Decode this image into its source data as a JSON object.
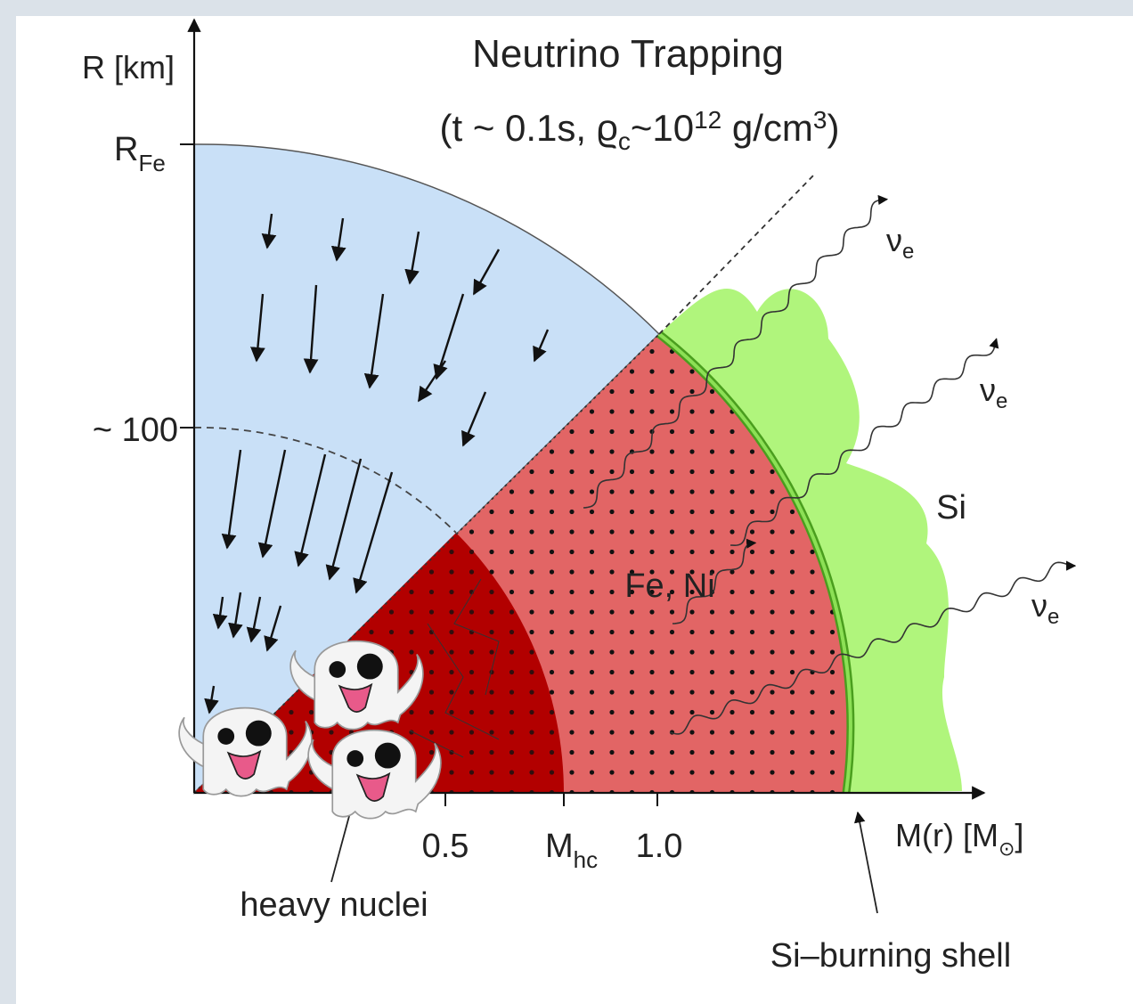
{
  "title": "Neutrino Trapping",
  "subtitle": [
    "(t ~ 0.1s, ϱ",
    "c",
    "~10",
    "12",
    " g/cm",
    "3",
    ")"
  ],
  "y_axis": {
    "label": "R [km]",
    "ticks": [
      {
        "main": "R",
        "sub": "Fe"
      },
      {
        "main": "~ 100"
      }
    ]
  },
  "x_axis": {
    "label": {
      "main": "M(r) [M",
      "sub": "⊙",
      "end": "]"
    },
    "ticks": [
      {
        "main": "0.5"
      },
      {
        "main": "M",
        "sub": "hc"
      },
      {
        "main": "1.0"
      }
    ]
  },
  "regions": {
    "core": "Fe, Ni",
    "shell": "Si"
  },
  "neutrinos": [
    {
      "main": "ν",
      "sub": "e"
    },
    {
      "main": "ν",
      "sub": "e"
    },
    {
      "main": "ν",
      "sub": "e"
    }
  ],
  "annotations": {
    "heavy_nuclei": "heavy nuclei",
    "shell": "Si–burning shell"
  }
}
